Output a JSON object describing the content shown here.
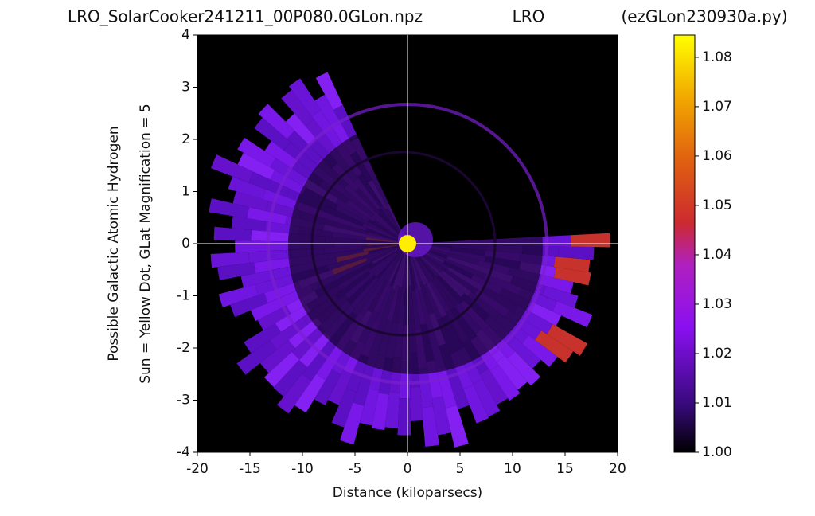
{
  "chart_data": {
    "type": "heatmap",
    "title": "LRO_SolarCooker241211_00P080.0GLon.npz",
    "subtitle": "LRO",
    "annotation": "(ezGLon230930a.py)",
    "xlabel": "Distance (kiloparsecs)",
    "ylabel": [
      "Possible Galactic Atomic Hydrogen",
      "Sun = Yellow Dot, GLat Magnification = 5"
    ],
    "xlim": [
      -20,
      20
    ],
    "xticks": [
      -20,
      -15,
      -10,
      -5,
      0,
      5,
      10,
      15,
      20
    ],
    "ylim": [
      -4,
      4
    ],
    "yticks": [
      -4,
      -3,
      -2,
      -1,
      0,
      1,
      2,
      3,
      4
    ],
    "colorbar": {
      "lim": [
        1.0,
        1.0845
      ],
      "ticks": [
        {
          "value": 1.0,
          "label": "1.00"
        },
        1.01,
        1.02,
        1.03,
        1.04,
        1.05,
        1.06,
        1.07,
        1.08
      ]
    },
    "sun_marker": {
      "x": 0,
      "y": 0,
      "color": "#ffee00"
    },
    "reference_line_color": "#ffffff"
  }
}
